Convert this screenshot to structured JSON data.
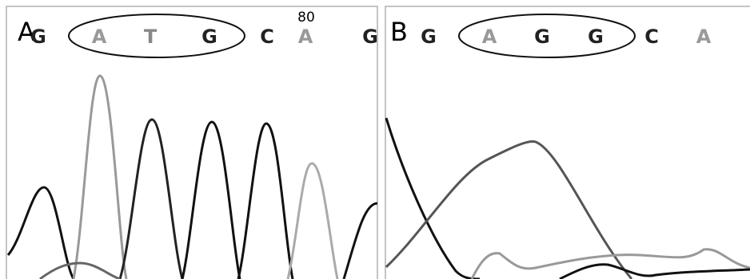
{
  "panels": [
    {
      "label": "A",
      "position": "80",
      "bases": [
        "G",
        "A",
        "T",
        "G",
        "C",
        "A",
        "G"
      ]
    },
    {
      "label": "B",
      "bases": [
        "G",
        "A",
        "G",
        "G",
        "C",
        "A"
      ]
    }
  ]
}
